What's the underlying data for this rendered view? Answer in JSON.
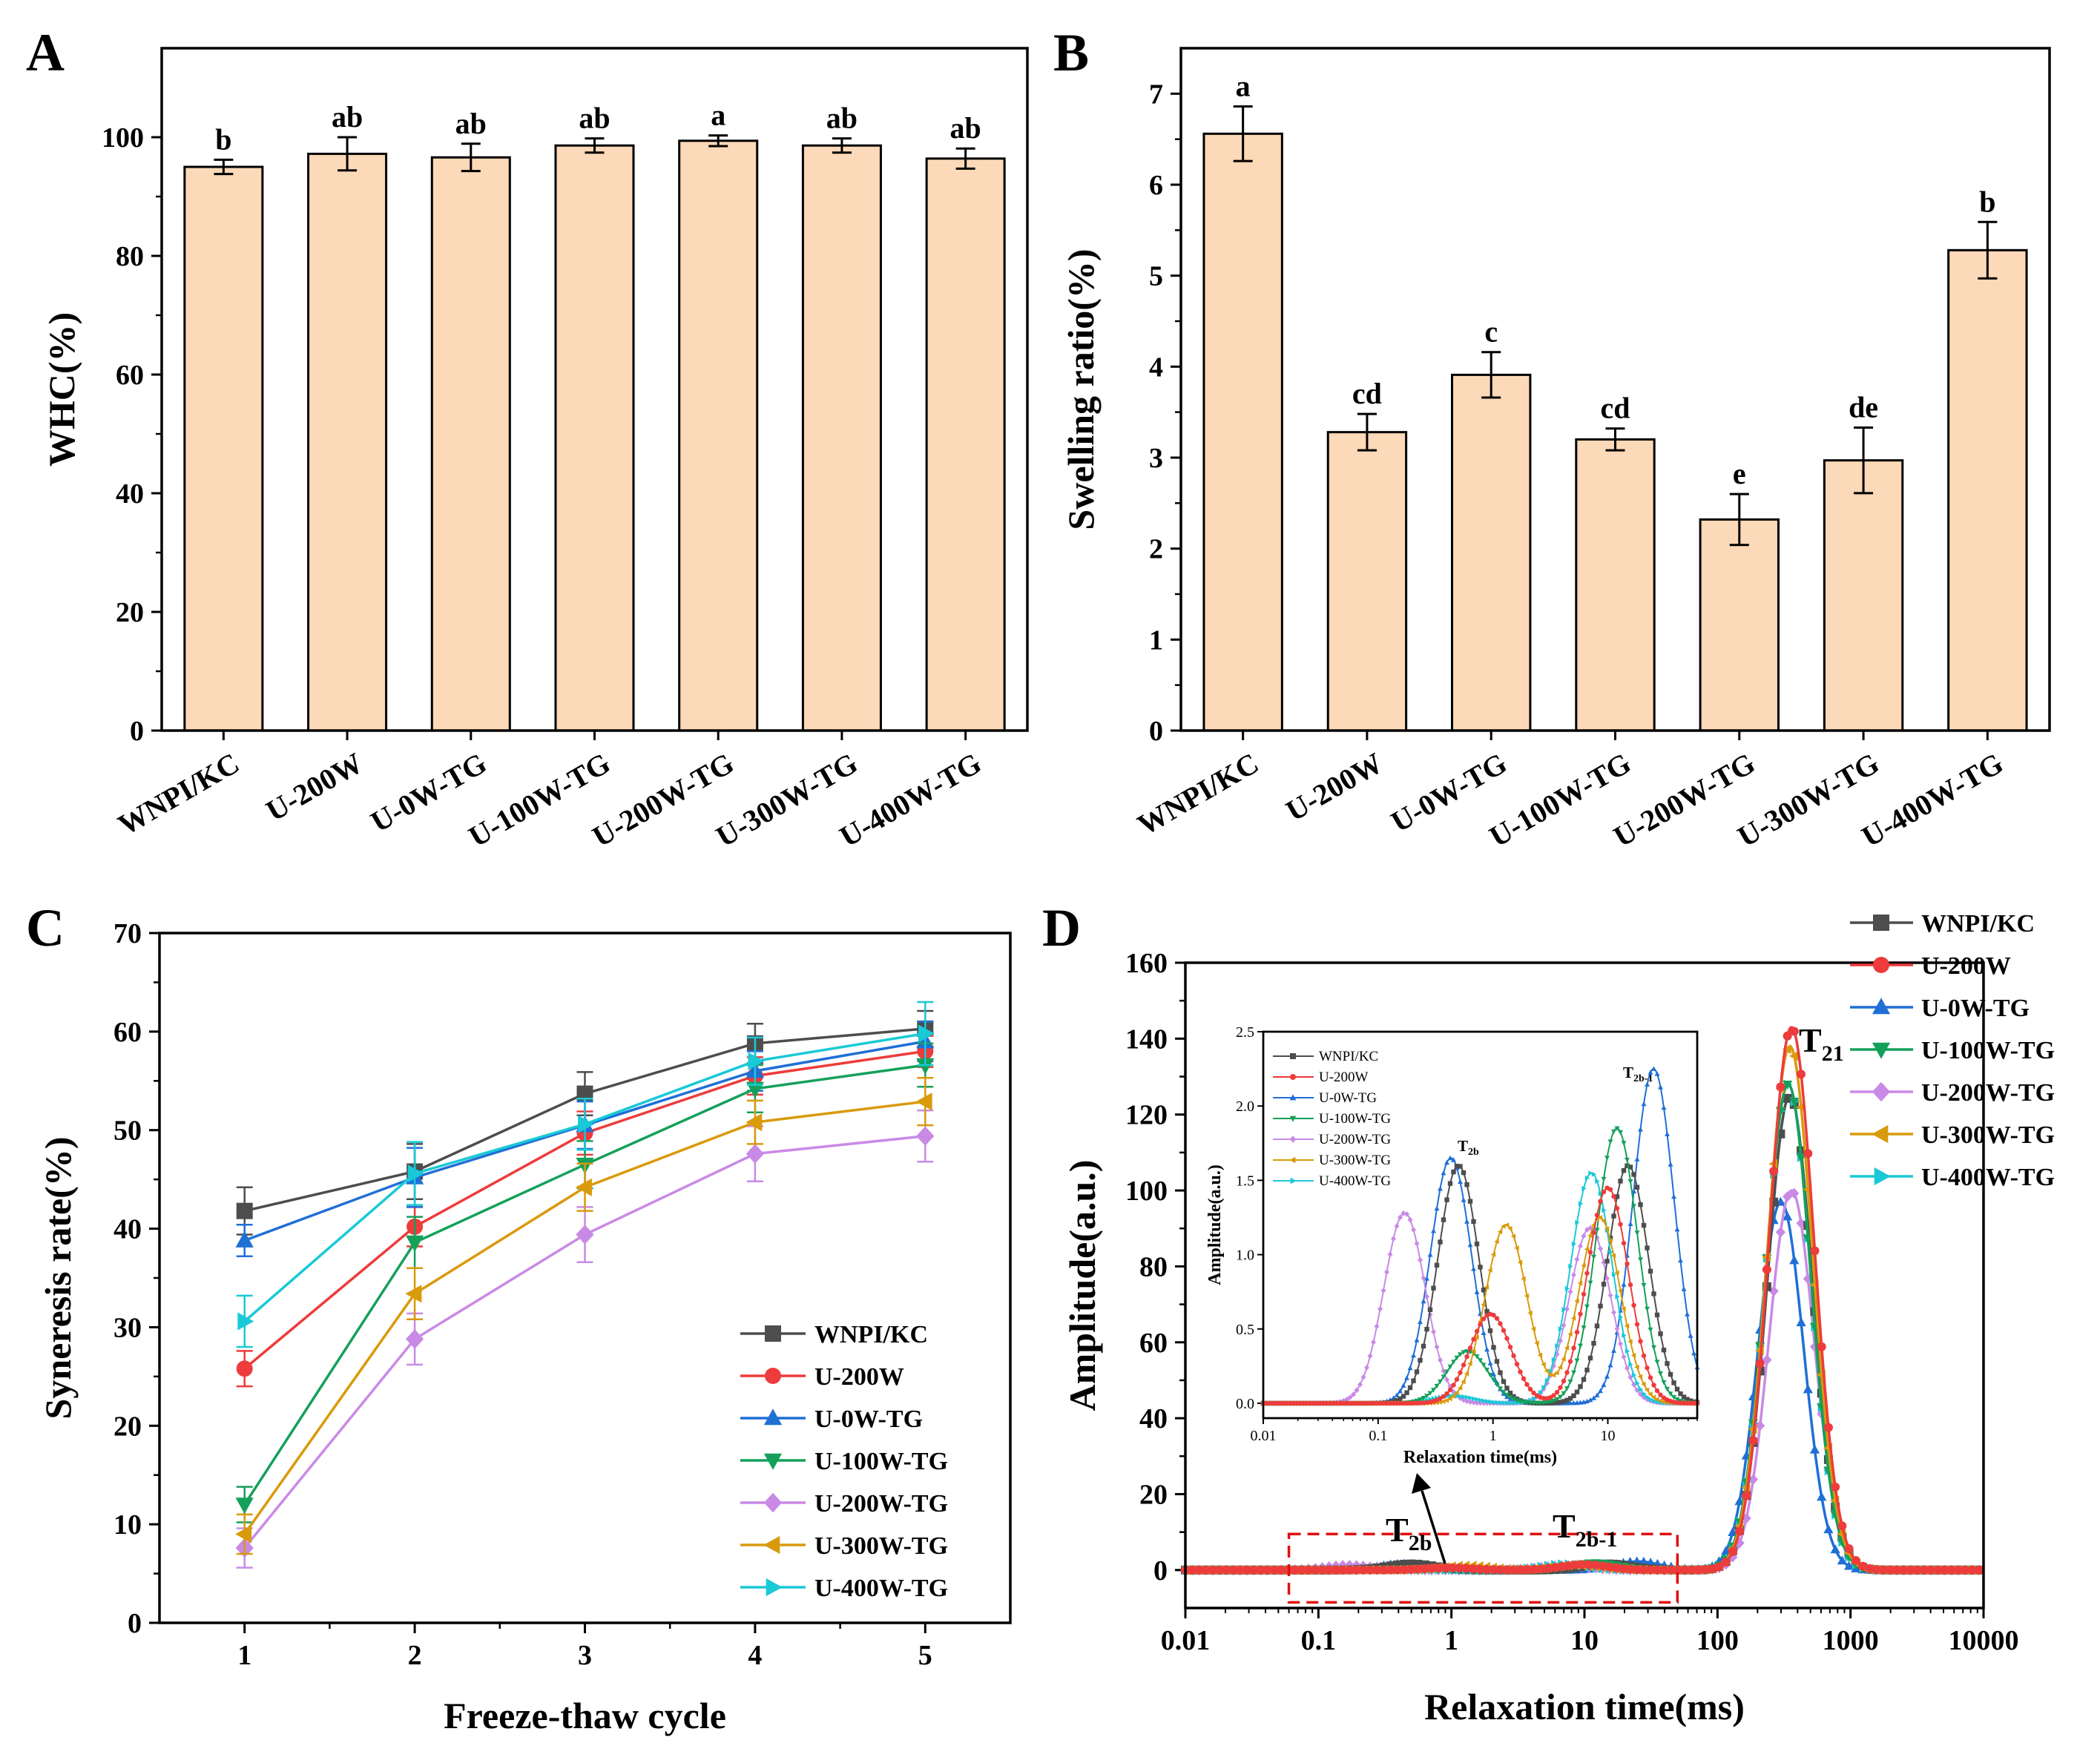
{
  "colors": {
    "bar_fill": "#fcd9b8",
    "series": [
      "#4d4d4d",
      "#ee3b3b",
      "#1f6fd6",
      "#14a05a",
      "#c98ae6",
      "#d99a0b",
      "#19c9d6"
    ],
    "dashed_box": "#e01010"
  },
  "chart_data": [
    {
      "panel": "A",
      "type": "bar",
      "ylabel": "WHC(%)",
      "categories": [
        "WNPI/KC",
        "U-200W",
        "U-0W-TG",
        "U-100W-TG",
        "U-200W-TG",
        "U-300W-TG",
        "U-400W-TG"
      ],
      "values": [
        95.0,
        97.2,
        96.6,
        98.6,
        99.4,
        98.6,
        96.4
      ],
      "errors": [
        1.2,
        2.8,
        2.3,
        1.2,
        0.9,
        1.2,
        1.7
      ],
      "letters": [
        "b",
        "ab",
        "ab",
        "ab",
        "a",
        "ab",
        "ab"
      ],
      "ylim": [
        0,
        115
      ],
      "yticks": [
        0,
        20,
        40,
        60,
        80,
        100
      ]
    },
    {
      "panel": "B",
      "type": "bar",
      "ylabel": "Swelling ratio(%)",
      "categories": [
        "WNPI/KC",
        "U-200W",
        "U-0W-TG",
        "U-100W-TG",
        "U-200W-TG",
        "U-300W-TG",
        "U-400W-TG"
      ],
      "values": [
        6.56,
        3.28,
        3.91,
        3.2,
        2.32,
        2.97,
        5.28
      ],
      "errors": [
        0.3,
        0.2,
        0.25,
        0.12,
        0.28,
        0.36,
        0.31
      ],
      "letters": [
        "a",
        "cd",
        "c",
        "cd",
        "e",
        "de",
        "b"
      ],
      "ylim": [
        0,
        7.5
      ],
      "yticks": [
        0,
        1,
        2,
        3,
        4,
        5,
        6,
        7
      ]
    },
    {
      "panel": "C",
      "type": "line",
      "xlabel": "Freeze-thaw cycle",
      "ylabel": "Syneresis rate(%)",
      "x": [
        1,
        2,
        3,
        4,
        5
      ],
      "xlim": [
        0.5,
        5.5
      ],
      "ylim": [
        0,
        70
      ],
      "xticks": [
        1,
        2,
        3,
        4,
        5
      ],
      "yticks": [
        0,
        10,
        20,
        30,
        40,
        50,
        60,
        70
      ],
      "legend": "lower-right",
      "series": [
        {
          "name": "WNPI/KC",
          "values": [
            41.8,
            45.8,
            53.7,
            58.8,
            60.3
          ],
          "errors": [
            2.4,
            2.8,
            2.2,
            2.0,
            1.8
          ],
          "marker": "square"
        },
        {
          "name": "U-200W",
          "values": [
            25.8,
            40.2,
            49.7,
            55.5,
            58.0
          ],
          "errors": [
            1.8,
            2.0,
            2.2,
            1.9,
            1.6
          ],
          "marker": "circle"
        },
        {
          "name": "U-0W-TG",
          "values": [
            38.8,
            45.2,
            50.5,
            56.0,
            59.0
          ],
          "errors": [
            1.6,
            3.0,
            2.4,
            2.0,
            2.0
          ],
          "marker": "triangle-up"
        },
        {
          "name": "U-100W-TG",
          "values": [
            12.0,
            38.6,
            46.5,
            54.2,
            56.6
          ],
          "errors": [
            1.8,
            2.6,
            2.4,
            2.4,
            2.2
          ],
          "marker": "triangle-down"
        },
        {
          "name": "U-200W-TG",
          "values": [
            7.6,
            28.8,
            39.4,
            47.6,
            49.4
          ],
          "errors": [
            2.0,
            2.6,
            2.8,
            2.8,
            2.6
          ],
          "marker": "diamond"
        },
        {
          "name": "U-300W-TG",
          "values": [
            9.0,
            33.4,
            44.2,
            50.8,
            52.9
          ],
          "errors": [
            2.0,
            2.6,
            2.4,
            2.2,
            2.4
          ],
          "marker": "triangle-left"
        },
        {
          "name": "U-400W-TG",
          "values": [
            30.6,
            45.6,
            50.6,
            57.0,
            59.8
          ],
          "errors": [
            2.6,
            3.2,
            2.6,
            2.4,
            3.2
          ],
          "marker": "triangle-right"
        }
      ]
    },
    {
      "panel": "D",
      "type": "line",
      "xscale": "log",
      "xlabel": "Relaxation time(ms)",
      "ylabel": "Amplitude(a.u.)",
      "xlim": [
        0.01,
        10000
      ],
      "ylim": [
        -10,
        160
      ],
      "xticks": [
        0.01,
        0.1,
        1,
        10,
        100,
        1000,
        10000
      ],
      "xtick_labels": [
        "0.01",
        "0.1",
        "1",
        "10",
        "100",
        "1000",
        "10000"
      ],
      "yticks": [
        0,
        20,
        40,
        60,
        80,
        100,
        120,
        140,
        160
      ],
      "legend": "outside-top-right",
      "annotations": [
        "T21",
        "T2b",
        "T2b-1"
      ],
      "series": [
        {
          "name": "WNPI/KC",
          "peaks": [
            {
              "center": 0.5,
              "height": 1.6
            },
            {
              "center": 15,
              "height": 1.6
            },
            {
              "center": 350,
              "height": 125
            }
          ],
          "marker": "square"
        },
        {
          "name": "U-200W",
          "peaks": [
            {
              "center": 0.95,
              "height": 0.6
            },
            {
              "center": 10,
              "height": 1.45
            },
            {
              "center": 360,
              "height": 143
            }
          ],
          "marker": "circle"
        },
        {
          "name": "U-0W-TG",
          "peaks": [
            {
              "center": 0.43,
              "height": 1.65
            },
            {
              "center": 25,
              "height": 2.25
            },
            {
              "center": 300,
              "height": 97
            }
          ],
          "marker": "triangle-up"
        },
        {
          "name": "U-100W-TG",
          "peaks": [
            {
              "center": 0.6,
              "height": 0.35
            },
            {
              "center": 12,
              "height": 1.85
            },
            {
              "center": 340,
              "height": 128
            }
          ],
          "marker": "triangle-down"
        },
        {
          "name": "U-200W-TG",
          "peaks": [
            {
              "center": 0.17,
              "height": 1.28
            },
            {
              "center": 7,
              "height": 1.18
            },
            {
              "center": 360,
              "height": 100
            }
          ],
          "marker": "diamond"
        },
        {
          "name": "U-300W-TG",
          "peaks": [
            {
              "center": 1.3,
              "height": 1.2
            },
            {
              "center": 8.5,
              "height": 1.25
            },
            {
              "center": 350,
              "height": 138
            }
          ],
          "marker": "triangle-left"
        },
        {
          "name": "U-400W-TG",
          "peaks": [
            {
              "center": 0.45,
              "height": 0.05
            },
            {
              "center": 7.2,
              "height": 1.55
            },
            {
              "center": 340,
              "height": 128
            }
          ],
          "marker": "triangle-right"
        }
      ],
      "inset": {
        "xlabel": "Relaxation time(ms)",
        "ylabel": "Amplitude(a.u.)",
        "xlim": [
          0.01,
          60
        ],
        "ylim": [
          -0.1,
          2.5
        ],
        "xticks": [
          0.01,
          0.1,
          1,
          10
        ],
        "xtick_labels": [
          "0.01",
          "0.1",
          "1",
          "10"
        ],
        "yticks": [
          0.0,
          0.5,
          1.0,
          1.5,
          2.0,
          2.5
        ],
        "ytick_labels": [
          "0.0",
          "0.5",
          "1.0",
          "1.5",
          "2.0",
          "2.5"
        ],
        "annotations": [
          "T2b",
          "T2b-1"
        ]
      }
    }
  ]
}
